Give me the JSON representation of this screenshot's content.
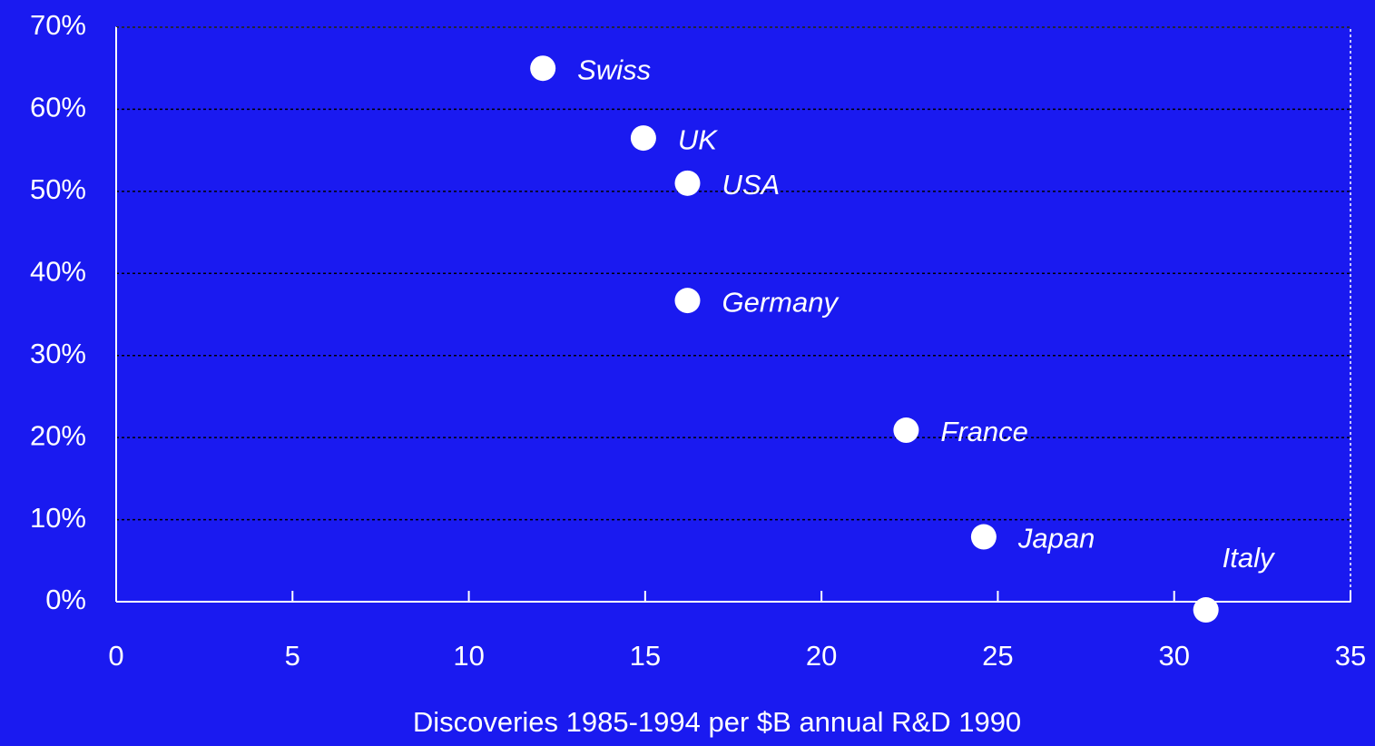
{
  "chart_data": {
    "type": "scatter",
    "x_label": "Discoveries 1985-1994 per $B annual R&D 1990",
    "labels": [
      "Swiss",
      "UK",
      "USA",
      "Germany",
      "France",
      "Japan",
      "Italy"
    ],
    "x": [
      12.1,
      14.95,
      16.2,
      16.2,
      22.4,
      24.6,
      30.9
    ],
    "values": [
      65,
      56.5,
      51,
      36.7,
      20.9,
      7.9,
      -1
    ],
    "color": "#ffffff",
    "xlim": [
      0,
      35
    ],
    "xticks": [
      0,
      5,
      10,
      15,
      20,
      25,
      30,
      35
    ],
    "ylim": [
      0,
      70
    ],
    "yticks": [
      {
        "value": 0,
        "label": "0%"
      },
      {
        "value": 10,
        "label": "10%"
      },
      {
        "value": 20,
        "label": "20%"
      },
      {
        "value": 30,
        "label": "30%"
      },
      {
        "value": 40,
        "label": "40%"
      },
      {
        "value": 50,
        "label": "50%"
      },
      {
        "value": 60,
        "label": "60%"
      },
      {
        "value": 70,
        "label": "70%"
      }
    ],
    "grid": true
  }
}
